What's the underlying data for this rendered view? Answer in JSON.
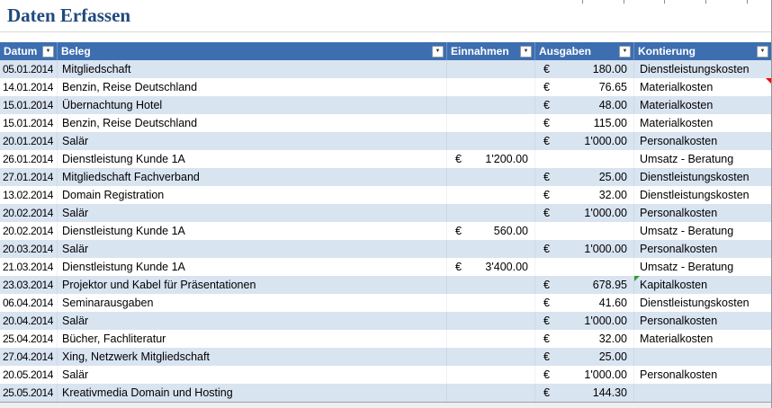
{
  "title": "Daten Erfassen",
  "currency": "€",
  "filter_icon": "▼",
  "colors": {
    "header_bg": "#3D6EB0",
    "band_bg": "#D9E4F1",
    "title_color": "#1F497D",
    "comment_indicator": "#FF0000",
    "error_indicator": "#2E9E35"
  },
  "table": {
    "columns": [
      {
        "id": "datum",
        "label": "Datum"
      },
      {
        "id": "beleg",
        "label": "Beleg"
      },
      {
        "id": "einnahmen",
        "label": "Einnahmen"
      },
      {
        "id": "ausgaben",
        "label": "Ausgaben"
      },
      {
        "id": "kontierung",
        "label": "Kontierung"
      }
    ],
    "rows": [
      {
        "datum": "05.01.2014",
        "beleg": "Mitgliedschaft",
        "einnahmen": "",
        "ausgaben": "180.00",
        "kontierung": "Dienstleistungskosten"
      },
      {
        "datum": "14.01.2014",
        "beleg": "Benzin, Reise Deutschland",
        "einnahmen": "",
        "ausgaben": "76.65",
        "kontierung": "Materialkosten",
        "marker": "red-comment"
      },
      {
        "datum": "15.01.2014",
        "beleg": "Übernachtung Hotel",
        "einnahmen": "",
        "ausgaben": "48.00",
        "kontierung": "Materialkosten"
      },
      {
        "datum": "15.01.2014",
        "beleg": "Benzin, Reise Deutschland",
        "einnahmen": "",
        "ausgaben": "115.00",
        "kontierung": "Materialkosten"
      },
      {
        "datum": "20.01.2014",
        "beleg": "Salär",
        "einnahmen": "",
        "ausgaben": "1'000.00",
        "kontierung": "Personalkosten"
      },
      {
        "datum": "26.01.2014",
        "beleg": "Dienstleistung Kunde 1A",
        "einnahmen": "1'200.00",
        "ausgaben": "",
        "kontierung": "Umsatz - Beratung"
      },
      {
        "datum": "27.01.2014",
        "beleg": "Mitgliedschaft Fachverband",
        "einnahmen": "",
        "ausgaben": "25.00",
        "kontierung": "Dienstleistungskosten"
      },
      {
        "datum": "13.02.2014",
        "beleg": "Domain Registration",
        "einnahmen": "",
        "ausgaben": "32.00",
        "kontierung": "Dienstleistungskosten"
      },
      {
        "datum": "20.02.2014",
        "beleg": "Salär",
        "einnahmen": "",
        "ausgaben": "1'000.00",
        "kontierung": "Personalkosten"
      },
      {
        "datum": "20.02.2014",
        "beleg": "Dienstleistung Kunde 1A",
        "einnahmen": "560.00",
        "ausgaben": "",
        "kontierung": "Umsatz - Beratung"
      },
      {
        "datum": "20.03.2014",
        "beleg": "Salär",
        "einnahmen": "",
        "ausgaben": "1'000.00",
        "kontierung": "Personalkosten"
      },
      {
        "datum": "21.03.2014",
        "beleg": "Dienstleistung Kunde 1A",
        "einnahmen": "3'400.00",
        "ausgaben": "",
        "kontierung": "Umsatz - Beratung"
      },
      {
        "datum": "23.03.2014",
        "beleg": "Projektor und Kabel für Präsentationen",
        "einnahmen": "",
        "ausgaben": "678.95",
        "kontierung": "Kapitalkosten",
        "marker": "green-flag"
      },
      {
        "datum": "06.04.2014",
        "beleg": "Seminarausgaben",
        "einnahmen": "",
        "ausgaben": "41.60",
        "kontierung": "Dienstleistungskosten"
      },
      {
        "datum": "20.04.2014",
        "beleg": "Salär",
        "einnahmen": "",
        "ausgaben": "1'000.00",
        "kontierung": "Personalkosten"
      },
      {
        "datum": "25.04.2014",
        "beleg": "Bücher, Fachliteratur",
        "einnahmen": "",
        "ausgaben": "32.00",
        "kontierung": "Materialkosten"
      },
      {
        "datum": "27.04.2014",
        "beleg": "Xing, Netzwerk Mitgliedschaft",
        "einnahmen": "",
        "ausgaben": "25.00",
        "kontierung": ""
      },
      {
        "datum": "20.05.2014",
        "beleg": "Salär",
        "einnahmen": "",
        "ausgaben": "1'000.00",
        "kontierung": "Personalkosten"
      },
      {
        "datum": "25.05.2014",
        "beleg": "Kreativmedia Domain und Hosting",
        "einnahmen": "",
        "ausgaben": "144.30",
        "kontierung": ""
      }
    ]
  }
}
